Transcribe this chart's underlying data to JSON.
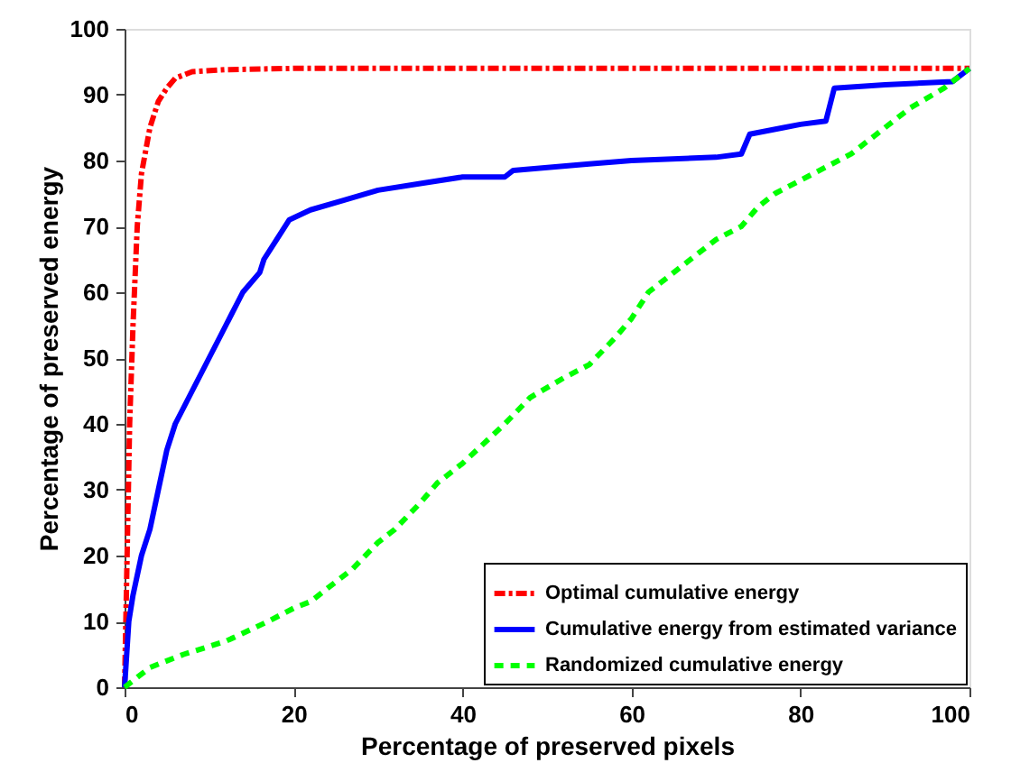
{
  "chart_data": {
    "type": "line",
    "xlabel": "Percentage of preserved pixels",
    "ylabel": "Percentage of preserved energy",
    "xlim": [
      0,
      100
    ],
    "xticks": [
      0,
      20,
      40,
      60,
      80,
      100
    ],
    "ylim": [
      0,
      100
    ],
    "yticks": [
      0,
      10,
      20,
      30,
      40,
      50,
      60,
      70,
      80,
      90,
      100
    ],
    "grid": false,
    "legend": "bottom right",
    "marker": "none",
    "series": [
      {
        "name": "Optimal cumulative energy",
        "color": "#ff0000",
        "line_style": "dashed",
        "x": [
          0,
          0.3,
          0.6,
          1,
          1.5,
          2,
          3,
          4,
          5,
          6,
          8,
          12,
          20,
          100
        ],
        "values": [
          0,
          20,
          40,
          55,
          70,
          78,
          85,
          89,
          91,
          92.5,
          93.5,
          93.8,
          94,
          94
        ]
      },
      {
        "name": "Cumulative energy from estimated variance",
        "color": "#0000ff",
        "line_style": "solid",
        "x": [
          0,
          0.5,
          1,
          2,
          3,
          4,
          5,
          6,
          8,
          10,
          12,
          14,
          16,
          16.5,
          18,
          19.5,
          22,
          26,
          30,
          35,
          40,
          45,
          46,
          55,
          60,
          70,
          73,
          74,
          78,
          80,
          83,
          84,
          90,
          98,
          100
        ],
        "values": [
          0,
          10,
          14,
          20,
          24,
          30,
          36,
          40,
          45,
          50,
          55,
          60,
          63,
          65,
          68,
          71,
          72.5,
          74,
          75.5,
          76.5,
          77.5,
          77.5,
          78.5,
          79.5,
          80,
          80.5,
          81,
          84,
          85,
          85.5,
          86,
          91,
          91.5,
          92,
          94
        ]
      },
      {
        "name": "Randomized cumulative energy",
        "color": "#00ff00",
        "line_style": "dotted",
        "x": [
          0,
          3,
          7,
          12,
          17,
          20,
          22,
          24,
          27,
          30,
          32,
          35,
          37,
          40,
          45,
          48,
          52,
          55,
          58,
          60,
          62,
          65,
          68,
          70,
          73,
          75,
          77,
          80,
          83,
          86,
          89,
          93,
          97,
          100
        ],
        "values": [
          0,
          3,
          5,
          7,
          10,
          12,
          13,
          15,
          18,
          22,
          24,
          28,
          31,
          34,
          40,
          44,
          47,
          49,
          53,
          56,
          60,
          63,
          66,
          68,
          70,
          73,
          75,
          77,
          79,
          81,
          84,
          88,
          91,
          94
        ]
      }
    ]
  }
}
